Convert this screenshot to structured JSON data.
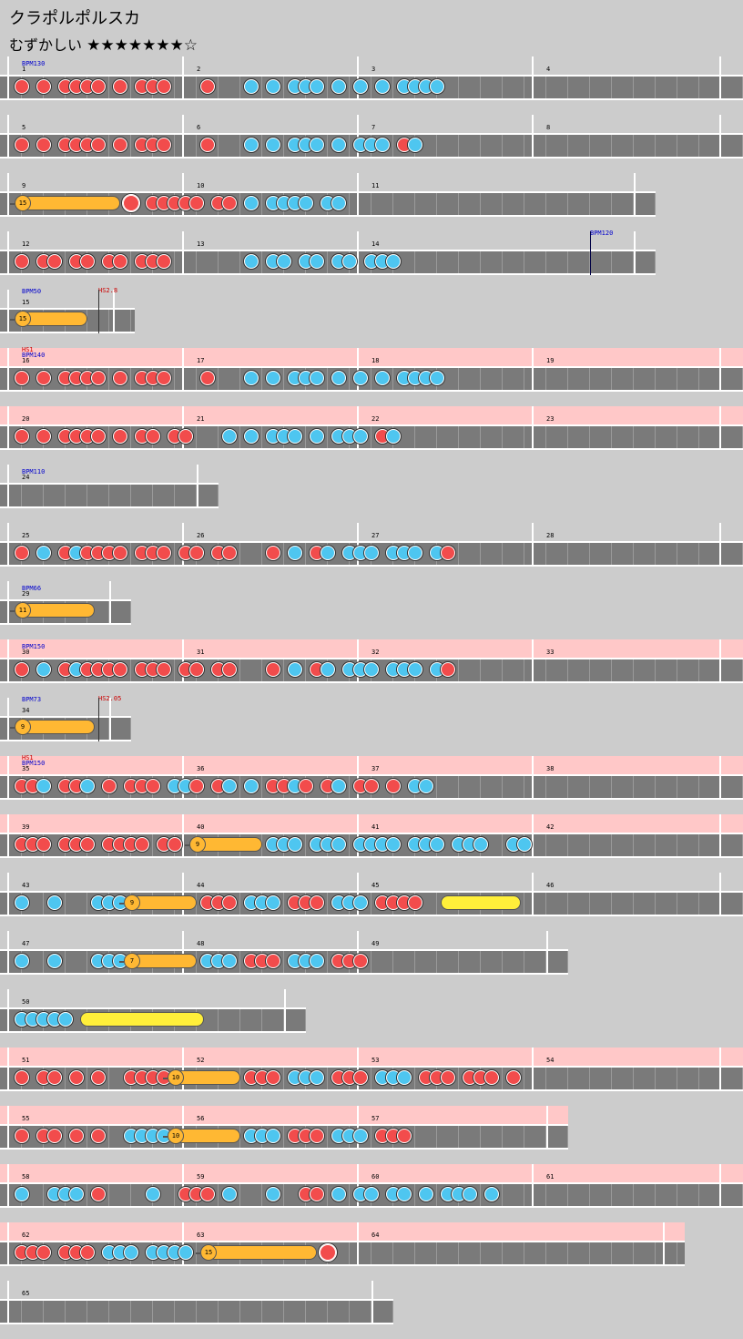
{
  "song": {
    "title": "クラポルポルスカ",
    "difficulty_label": "むずかしい",
    "stars": "★★★★★★★☆"
  },
  "colors": {
    "don": "#f24c4c",
    "ka": "#4ec6f0",
    "roll": "#ffb833",
    "big_roll": "#ffef3a",
    "gogo": "#ffc8c8"
  },
  "rows": [
    {
      "gogo": false,
      "bars": [
        1,
        2,
        3,
        4
      ],
      "bpm": "BPM130",
      "notes": "d.d.dddd.d.ddd...d...k.k.kkk.k.k.k.kkkk"
    },
    {
      "gogo": false,
      "bars": [
        5,
        6,
        7,
        8
      ],
      "notes": "d.d.dddd.d.ddd...d...k.k.kkk.k.kkk.dk"
    },
    {
      "gogo": false,
      "bars": [
        9,
        10,
        11
      ],
      "balloon": "15",
      "notes": "B.........D.ddddd.dd.k.kkkk.kk"
    },
    {
      "gogo": false,
      "bars": [
        12,
        13,
        14
      ],
      "bpm_mid": "BPM120",
      "notes": "d.dd.dd.dd.ddd.......k.kk.kk.kk.kkk"
    },
    {
      "gogo": false,
      "bars": [
        15
      ],
      "bpm": "BPM50",
      "hs": "HS2.8",
      "balloon": "15"
    },
    {
      "gogo": true,
      "bars": [
        16,
        17,
        18,
        19
      ],
      "bpm": "BPM140",
      "hs": "HS1",
      "notes": "d.d.dddd.d.ddd...d...k.k.kkk.k.k.k.kkkk"
    },
    {
      "gogo": true,
      "bars": [
        20,
        21,
        22,
        23
      ],
      "notes": "d.d.dddd.d.dd.dd...k.k.kkk.k.kkk.dk"
    },
    {
      "gogo": false,
      "bars": [
        24
      ],
      "bpm": "BPM110"
    },
    {
      "gogo": false,
      "bars": [
        25,
        26,
        27,
        28
      ],
      "notes": "d.k.dkdddd.ddd.dd.dd...d.k.dk.kkk.kkk.kd"
    },
    {
      "gogo": false,
      "bars": [
        29
      ],
      "bpm": "BPM66",
      "balloon": "11"
    },
    {
      "gogo": true,
      "bars": [
        30,
        31,
        32,
        33
      ],
      "bpm": "BPM150",
      "notes": "d.k.dkdddd.ddd.dd.dd...d.k.dk.kkk.kkk.kd"
    },
    {
      "gogo": false,
      "bars": [
        34
      ],
      "bpm": "BPM73",
      "hs": "HS2.05",
      "balloon": "9"
    },
    {
      "gogo": true,
      "bars": [
        35,
        36,
        37,
        38
      ],
      "bpm": "BPM150",
      "hs": "HS1",
      "notes": "ddk.ddk.d.ddd.kkd.dk.k.ddkd.dk.dd.d.kk"
    },
    {
      "gogo": true,
      "bars": [
        39,
        40,
        41,
        42
      ],
      "notes": "ddd.ddd.dddd.dd.B......kkk.kkk.kkkk.kkk.kkk..kk"
    },
    {
      "gogo": false,
      "bars": [
        43,
        44,
        45,
        46
      ],
      "notes": "k..k...kkkB......ddd.kkk.ddd.kkk.dddd..Y..."
    },
    {
      "gogo": false,
      "bars": [
        47,
        48,
        49
      ],
      "notes": "k..k...kkkB......kkk.ddd.kkk.ddd"
    },
    {
      "gogo": false,
      "bars": [
        50
      ],
      "notes": "kkkkk.Y......."
    },
    {
      "gogo": true,
      "bars": [
        51,
        52,
        53,
        54
      ],
      "notes": "d.dd.d.d..ddddB......ddd.kkk.ddd.kkk.ddd.ddd.d"
    },
    {
      "gogo": true,
      "bars": [
        55,
        56,
        57
      ],
      "notes": "d.dd.d.d..kkkkB......kkk.ddd.kkk.ddd"
    },
    {
      "gogo": true,
      "bars": [
        58,
        59,
        60,
        61
      ],
      "notes": "k..kkk.d....k..ddd.k...k..dd.k.kk.kk.k.kkk.k"
    },
    {
      "gogo": true,
      "bars": [
        62,
        63,
        64
      ],
      "balloon": "15",
      "notes": "ddd.ddd.kkk.kkkk.B..........D"
    },
    {
      "gogo": false,
      "bars": [
        65
      ]
    }
  ]
}
